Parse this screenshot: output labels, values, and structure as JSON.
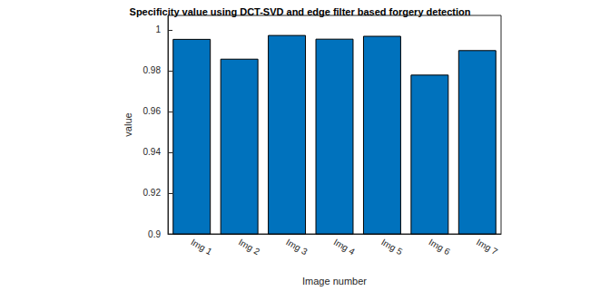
{
  "chart_data": {
    "type": "bar",
    "title": "Specificity value using DCT-SVD and edge filter based forgery detection",
    "x_label": "Image number",
    "y_label": "value",
    "categories": [
      "Img 1",
      "Img 2",
      "Img 3",
      "Img 4",
      "Img 5",
      "Img 6",
      "Img 7"
    ],
    "values": [
      0.9955,
      0.9858,
      0.9974,
      0.9956,
      0.997,
      0.978,
      0.99
    ],
    "color": "#0072bd",
    "ylim": [
      0.9,
      1.007
    ],
    "yticks": [
      0.9,
      0.92,
      0.94,
      0.96,
      0.98,
      1
    ],
    "grid": false
  }
}
